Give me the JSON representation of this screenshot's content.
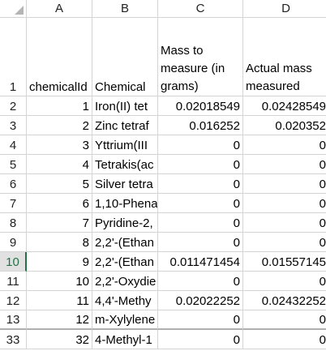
{
  "columns": [
    "A",
    "B",
    "C",
    "D"
  ],
  "header_row": {
    "row_number": "1",
    "A": "chemicalId",
    "B": "Chemical",
    "C": "Mass to measure (in grams)",
    "D": "Actual mass measured"
  },
  "rows": [
    {
      "row_number": "2",
      "A": "1",
      "B": "Iron(II) tet",
      "C": "0.02018549",
      "D": "0.02428549"
    },
    {
      "row_number": "3",
      "A": "2",
      "B": "Zinc tetraf",
      "C": "0.016252",
      "D": "0.020352"
    },
    {
      "row_number": "4",
      "A": "3",
      "B": "Yttrium(III",
      "C": "0",
      "D": "0"
    },
    {
      "row_number": "5",
      "A": "4",
      "B": "Tetrakis(ac",
      "C": "0",
      "D": "0"
    },
    {
      "row_number": "6",
      "A": "5",
      "B": "Silver tetra",
      "C": "0",
      "D": "0"
    },
    {
      "row_number": "7",
      "A": "6",
      "B": "1,10-Phena",
      "C": "0",
      "D": "0"
    },
    {
      "row_number": "8",
      "A": "7",
      "B": "Pyridine-2,",
      "C": "0",
      "D": "0"
    },
    {
      "row_number": "9",
      "A": "8",
      "B": "2,2'-(Ethan",
      "C": "0",
      "D": "0"
    },
    {
      "row_number": "10",
      "A": "9",
      "B": "2,2'-(Ethan",
      "C": "0.011471454",
      "D": "0.01557145"
    },
    {
      "row_number": "11",
      "A": "10",
      "B": "2,2'-Oxydie",
      "C": "0",
      "D": "0"
    },
    {
      "row_number": "12",
      "A": "11",
      "B": "4,4'-Methy",
      "C": "0.02022252",
      "D": "0.02432252"
    },
    {
      "row_number": "13",
      "A": "12",
      "B": "m-Xylylene",
      "C": "0",
      "D": "0"
    },
    {
      "row_number": "33",
      "A": "32",
      "B": "4-Methyl-1",
      "C": "0",
      "D": "0"
    }
  ],
  "active_row": "10"
}
